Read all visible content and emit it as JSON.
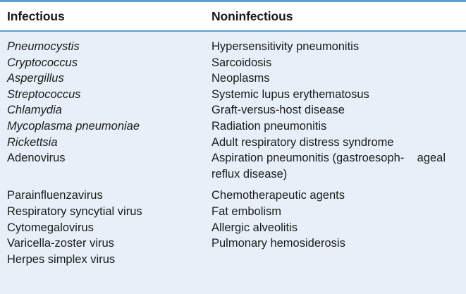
{
  "headers": {
    "infectious": "Infectious",
    "noninfectious": "Noninfectious"
  },
  "rows": [
    {
      "infectious": "Pneumocystis",
      "infectious_italic": true,
      "noninfectious": "Hypersensitivity pneumonitis"
    },
    {
      "infectious": "Cryptococcus",
      "infectious_italic": true,
      "noninfectious": "Sarcoidosis"
    },
    {
      "infectious": "Aspergillus",
      "infectious_italic": true,
      "noninfectious": "Neoplasms"
    },
    {
      "infectious": "Streptococcus",
      "infectious_italic": true,
      "noninfectious": "Systemic lupus erythematosus"
    },
    {
      "infectious": "Chlamydia",
      "infectious_italic": true,
      "noninfectious": "Graft-versus-host disease"
    },
    {
      "infectious": "Mycoplasma pneumoniae",
      "infectious_italic": true,
      "noninfectious": "Radiation pneumonitis"
    },
    {
      "infectious": "Rickettsia",
      "infectious_italic": true,
      "noninfectious": "Adult respiratory distress syndrome"
    },
    {
      "infectious": "Adenovirus",
      "infectious_italic": false,
      "noninfectious": "Aspiration pneumonitis (gastroesoph-    ageal reflux disease)"
    },
    {
      "infectious": "Parainfluenzavirus",
      "infectious_italic": false,
      "noninfectious": "Chemotherapeutic agents"
    },
    {
      "infectious": "Respiratory syncytial virus",
      "infectious_italic": false,
      "noninfectious": "Fat embolism"
    },
    {
      "infectious": "Cytomegalovirus",
      "infectious_italic": false,
      "noninfectious": "Allergic alveolitis"
    },
    {
      "infectious": "Varicella-zoster virus",
      "infectious_italic": false,
      "noninfectious": "Pulmonary hemosiderosis"
    },
    {
      "infectious": "Herpes simplex virus",
      "infectious_italic": false,
      "noninfectious": ""
    }
  ]
}
